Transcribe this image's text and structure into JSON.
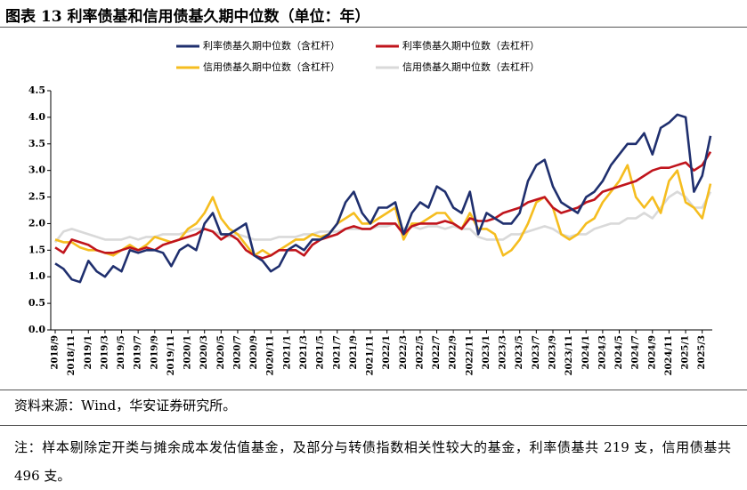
{
  "header_title": "图表 13 利率债基和信用债基久期中位数（单位：年）",
  "source": "资料来源：Wind，华安证券研究所。",
  "note": "注：样本剔除定开类与摊余成本发估值基金，及部分与转债指数相关性较大的基金，利率债基共 219 支，信用债基共 496 支。",
  "chart_data": {
    "type": "line",
    "categories": [
      "2018/9",
      null,
      "2018/11",
      null,
      "2019/1",
      null,
      "2019/3",
      null,
      "2019/5",
      null,
      "2019/7",
      null,
      "2019/9",
      null,
      "2019/11",
      null,
      "2020/1",
      null,
      "2020/3",
      null,
      "2020/5",
      null,
      "2020/7",
      null,
      "2020/9",
      null,
      "2020/11",
      null,
      "2021/1",
      null,
      "2021/3",
      null,
      "2021/5",
      null,
      "2021/7",
      null,
      "2021/9",
      null,
      "2021/11",
      null,
      "2022/1",
      null,
      "2022/3",
      null,
      "2022/5",
      null,
      "2022/7",
      null,
      "2022/9",
      null,
      "2022/11",
      null,
      "2023/1",
      null,
      "2023/3",
      null,
      "2023/5",
      null,
      "2023/7",
      null,
      "2023/9",
      null,
      "2023/11",
      null,
      "2024/1",
      null,
      "2024/3",
      null,
      "2024/5",
      null,
      "2024/7",
      null,
      "2024/9",
      null,
      "2024/11",
      null,
      "2025/1",
      null,
      "2025/3",
      null
    ],
    "series": [
      {
        "name": "利率债基久期中位数（含杠杆）",
        "color": "#1f2f6e",
        "values": [
          1.25,
          1.15,
          0.95,
          0.9,
          1.3,
          1.1,
          1.0,
          1.2,
          1.1,
          1.5,
          1.45,
          1.5,
          1.5,
          1.45,
          1.2,
          1.5,
          1.6,
          1.5,
          2.0,
          2.2,
          1.8,
          1.8,
          1.9,
          2.0,
          1.4,
          1.3,
          1.1,
          1.2,
          1.5,
          1.6,
          1.5,
          1.7,
          1.7,
          1.8,
          2.0,
          2.4,
          2.6,
          2.2,
          2.0,
          2.3,
          2.3,
          2.4,
          1.8,
          2.2,
          2.4,
          2.3,
          2.7,
          2.6,
          2.3,
          2.2,
          2.6,
          1.8,
          2.2,
          2.1,
          2.0,
          2.0,
          2.2,
          2.8,
          3.1,
          3.2,
          2.7,
          2.4,
          2.3,
          2.2,
          2.5,
          2.6,
          2.8,
          3.1,
          3.3,
          3.5,
          3.5,
          3.7,
          3.3,
          3.8,
          3.9,
          4.05,
          4.0,
          2.6,
          2.9,
          3.65
        ]
      },
      {
        "name": "利率债基久期中位数（去杠杆）",
        "color": "#c0141c",
        "values": [
          1.55,
          1.45,
          1.7,
          1.65,
          1.6,
          1.5,
          1.45,
          1.45,
          1.5,
          1.55,
          1.5,
          1.55,
          1.5,
          1.6,
          1.65,
          1.7,
          1.75,
          1.8,
          1.9,
          1.85,
          1.7,
          1.8,
          1.7,
          1.5,
          1.4,
          1.35,
          1.4,
          1.5,
          1.5,
          1.5,
          1.4,
          1.6,
          1.7,
          1.75,
          1.8,
          1.9,
          1.95,
          1.9,
          1.9,
          2.0,
          2.0,
          2.0,
          1.8,
          1.95,
          2.0,
          2.0,
          2.0,
          2.05,
          2.0,
          1.9,
          2.1,
          2.05,
          2.05,
          2.1,
          2.2,
          2.25,
          2.3,
          2.4,
          2.45,
          2.5,
          2.3,
          2.2,
          2.25,
          2.3,
          2.4,
          2.45,
          2.6,
          2.65,
          2.7,
          2.75,
          2.8,
          2.9,
          3.0,
          3.05,
          3.05,
          3.1,
          3.15,
          3.0,
          3.1,
          3.35
        ]
      },
      {
        "name": "信用债基久期中位数（含杠杆）",
        "color": "#f5bd1f",
        "values": [
          1.7,
          1.65,
          1.65,
          1.55,
          1.5,
          1.5,
          1.45,
          1.4,
          1.5,
          1.6,
          1.5,
          1.6,
          1.75,
          1.7,
          1.65,
          1.7,
          1.9,
          2.0,
          2.2,
          2.5,
          2.1,
          1.9,
          1.8,
          1.6,
          1.4,
          1.5,
          1.4,
          1.5,
          1.6,
          1.7,
          1.7,
          1.8,
          1.75,
          1.8,
          2.0,
          2.1,
          2.2,
          2.0,
          2.0,
          2.1,
          2.2,
          2.3,
          1.7,
          2.0,
          2.0,
          2.1,
          2.2,
          2.2,
          2.0,
          1.9,
          2.2,
          1.9,
          1.9,
          1.8,
          1.4,
          1.5,
          1.7,
          2.0,
          2.4,
          2.5,
          2.3,
          1.8,
          1.7,
          1.8,
          2.0,
          2.1,
          2.4,
          2.6,
          2.8,
          3.1,
          2.5,
          2.3,
          2.5,
          2.2,
          2.8,
          3.0,
          2.4,
          2.3,
          2.1,
          2.75
        ]
      },
      {
        "name": "信用债基久期中位数（去杠杆）",
        "color": "#d9d9d9",
        "values": [
          1.65,
          1.85,
          1.9,
          1.85,
          1.8,
          1.75,
          1.7,
          1.7,
          1.7,
          1.75,
          1.7,
          1.75,
          1.75,
          1.8,
          1.8,
          1.8,
          1.85,
          1.9,
          1.9,
          1.85,
          1.8,
          1.75,
          1.8,
          1.75,
          1.7,
          1.7,
          1.7,
          1.75,
          1.75,
          1.75,
          1.8,
          1.8,
          1.85,
          1.85,
          1.85,
          1.9,
          1.9,
          1.9,
          1.9,
          1.95,
          1.95,
          2.0,
          1.9,
          1.95,
          1.9,
          1.95,
          1.95,
          1.9,
          1.95,
          1.9,
          1.9,
          1.75,
          1.7,
          1.7,
          1.7,
          1.8,
          1.8,
          1.85,
          1.9,
          1.95,
          1.9,
          1.8,
          1.75,
          1.8,
          1.8,
          1.9,
          1.95,
          2.0,
          2.0,
          2.1,
          2.1,
          2.2,
          2.1,
          2.3,
          2.5,
          2.6,
          2.5,
          2.3,
          2.3,
          2.6
        ]
      }
    ],
    "ylim": [
      0,
      4.5
    ],
    "yticks": [
      {
        "value": 0,
        "label": "0.0"
      },
      0.5,
      {
        "value": 1,
        "label": "1.0"
      },
      1.5,
      {
        "value": 2,
        "label": "2.0"
      },
      2.5,
      {
        "value": 3,
        "label": "3.0"
      },
      3.5,
      {
        "value": 4,
        "label": "4.0"
      },
      4.5
    ],
    "grid": false
  }
}
